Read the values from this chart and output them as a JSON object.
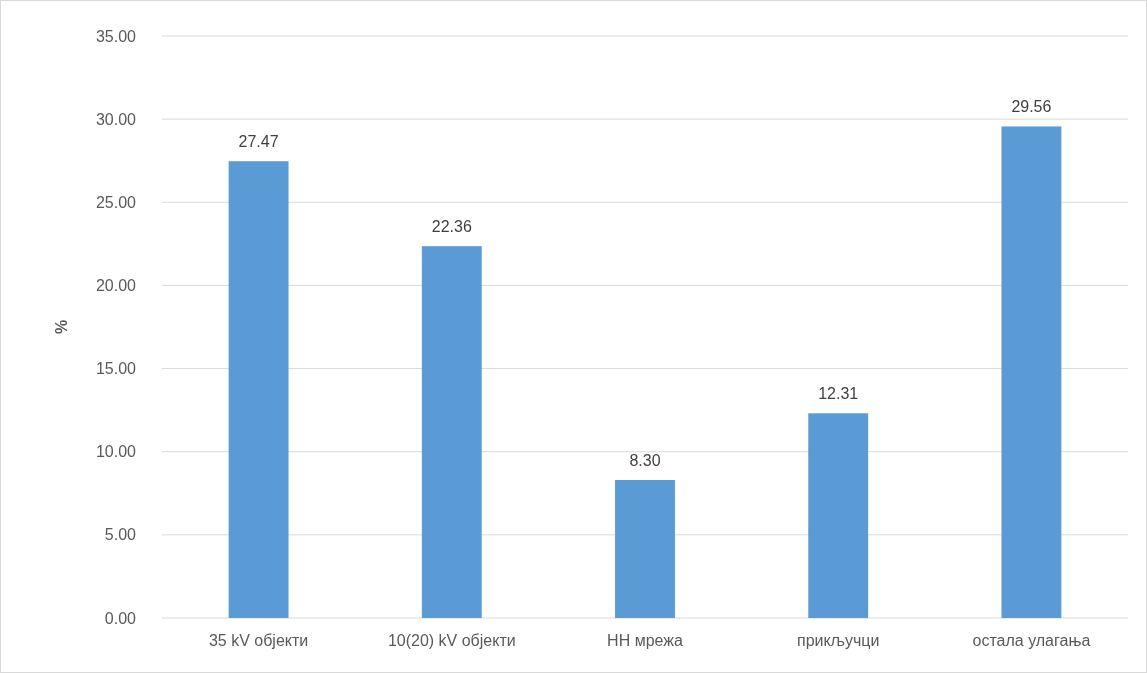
{
  "chart_data": {
    "type": "bar",
    "ylabel": "%",
    "categories": [
      "35 kV објекти",
      "10(20) kV објекти",
      "НН мрежа",
      "прикључци",
      "остала улагања"
    ],
    "values": [
      27.47,
      22.36,
      8.3,
      12.31,
      29.56
    ],
    "value_labels": [
      "27.47",
      "22.36",
      "8.30",
      "12.31",
      "29.56"
    ],
    "color": "#5b9bd5",
    "ylim": [
      0,
      35
    ],
    "yticks": [
      {
        "value": 0,
        "label": "0.00"
      },
      {
        "value": 5,
        "label": "5.00"
      },
      {
        "value": 10,
        "label": "10.00"
      },
      {
        "value": 15,
        "label": "15.00"
      },
      {
        "value": 20,
        "label": "20.00"
      },
      {
        "value": 25,
        "label": "25.00"
      },
      {
        "value": 30,
        "label": "30.00"
      },
      {
        "value": 35,
        "label": "35.00"
      }
    ],
    "grid": "y"
  }
}
